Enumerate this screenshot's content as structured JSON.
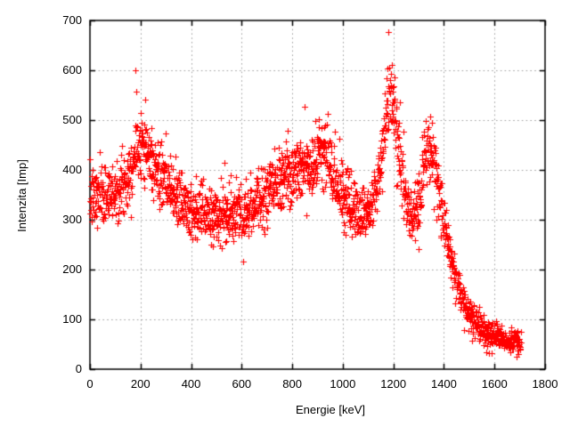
{
  "figure": {
    "background": "#ffffff",
    "border_color": "#000000",
    "grid_color": "#a0a0a0",
    "text_color": "#000000"
  },
  "chart_data": {
    "type": "scatter",
    "title": "",
    "xlabel": "Energie [keV]",
    "ylabel": "Intenzita [Imp]",
    "xlim": [
      0,
      1800
    ],
    "ylim": [
      0,
      700
    ],
    "xticks": [
      0,
      200,
      400,
      600,
      800,
      1000,
      1200,
      1400,
      1600,
      1800
    ],
    "yticks": [
      0,
      100,
      200,
      300,
      400,
      500,
      600,
      700
    ],
    "grid": true,
    "legend": "none",
    "marker": "plus",
    "marker_color": "#ff0000",
    "marker_size": 7,
    "x_start": 0,
    "x_end": 1705,
    "x_step": 0.85,
    "seed": 7,
    "noise_factor": 1.6,
    "envelope": [
      [
        0,
        340
      ],
      [
        30,
        345
      ],
      [
        60,
        350
      ],
      [
        90,
        356
      ],
      [
        120,
        365
      ],
      [
        150,
        392
      ],
      [
        170,
        422
      ],
      [
        185,
        448
      ],
      [
        200,
        466
      ],
      [
        215,
        452
      ],
      [
        230,
        428
      ],
      [
        260,
        398
      ],
      [
        300,
        372
      ],
      [
        350,
        342
      ],
      [
        400,
        322
      ],
      [
        450,
        312
      ],
      [
        500,
        307
      ],
      [
        550,
        307
      ],
      [
        600,
        318
      ],
      [
        650,
        333
      ],
      [
        700,
        351
      ],
      [
        750,
        372
      ],
      [
        800,
        393
      ],
      [
        840,
        406
      ],
      [
        880,
        420
      ],
      [
        910,
        430
      ],
      [
        930,
        426
      ],
      [
        950,
        410
      ],
      [
        975,
        381
      ],
      [
        1000,
        352
      ],
      [
        1030,
        331
      ],
      [
        1060,
        318
      ],
      [
        1090,
        315
      ],
      [
        1110,
        325
      ],
      [
        1130,
        356
      ],
      [
        1150,
        420
      ],
      [
        1165,
        492
      ],
      [
        1180,
        548
      ],
      [
        1192,
        552
      ],
      [
        1205,
        515
      ],
      [
        1220,
        448
      ],
      [
        1235,
        385
      ],
      [
        1250,
        330
      ],
      [
        1265,
        305
      ],
      [
        1280,
        300
      ],
      [
        1295,
        322
      ],
      [
        1310,
        370
      ],
      [
        1325,
        420
      ],
      [
        1338,
        446
      ],
      [
        1350,
        441
      ],
      [
        1362,
        415
      ],
      [
        1375,
        378
      ],
      [
        1390,
        332
      ],
      [
        1405,
        282
      ],
      [
        1420,
        240
      ],
      [
        1435,
        205
      ],
      [
        1450,
        178
      ],
      [
        1465,
        155
      ],
      [
        1480,
        135
      ],
      [
        1495,
        118
      ],
      [
        1510,
        105
      ],
      [
        1530,
        93
      ],
      [
        1550,
        84
      ],
      [
        1570,
        77
      ],
      [
        1590,
        71
      ],
      [
        1610,
        66
      ],
      [
        1630,
        61
      ],
      [
        1650,
        58
      ],
      [
        1670,
        55
      ],
      [
        1690,
        53
      ],
      [
        1705,
        52
      ]
    ],
    "outliers": [
      [
        180,
        600
      ],
      [
        218,
        541
      ],
      [
        531,
        414
      ],
      [
        849,
        527
      ],
      [
        1176,
        604
      ],
      [
        1180,
        677
      ]
    ]
  }
}
